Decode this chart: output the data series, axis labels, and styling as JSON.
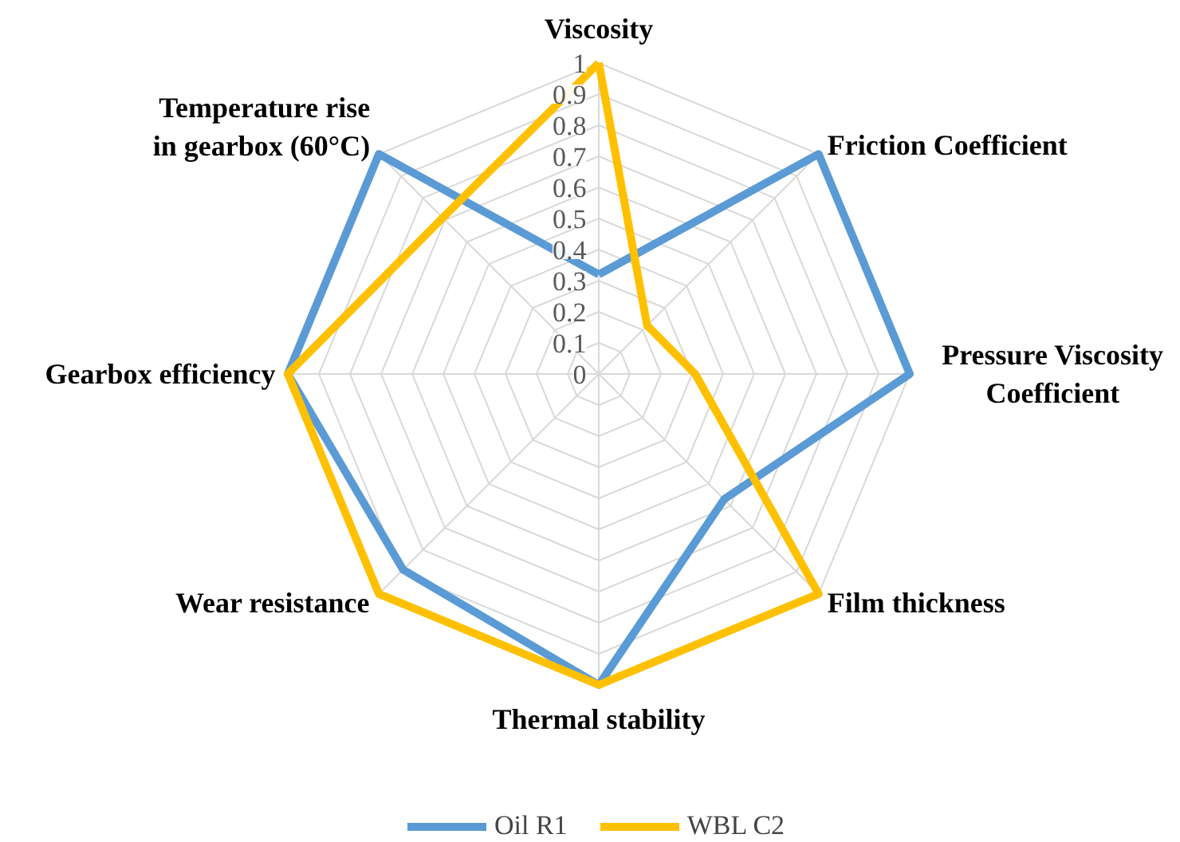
{
  "chart_data": {
    "type": "radar",
    "categories": [
      "Viscosity",
      "Friction Coefficient",
      "Pressure Viscosity Coefficient",
      "Film thickness",
      "Thermal stability",
      "Wear resistance",
      "Gearbox efficiency",
      "Temperature rise in gearbox (60°C)"
    ],
    "series": [
      {
        "name": "Oil R1",
        "color": "#5b9bd5",
        "values": [
          0.32,
          1,
          1,
          0.57,
          1,
          0.89,
          1,
          1
        ]
      },
      {
        "name": "WBL C2",
        "color": "#ffc000",
        "values": [
          1,
          0.22,
          0.31,
          1,
          1,
          1,
          1,
          0.71
        ]
      }
    ],
    "ylim": [
      0,
      1
    ],
    "yticks": [
      0,
      0.1,
      0.2,
      0.3,
      0.4,
      0.5,
      0.6,
      0.7,
      0.8,
      0.9,
      1
    ],
    "grid": true,
    "legend": "bottom"
  }
}
